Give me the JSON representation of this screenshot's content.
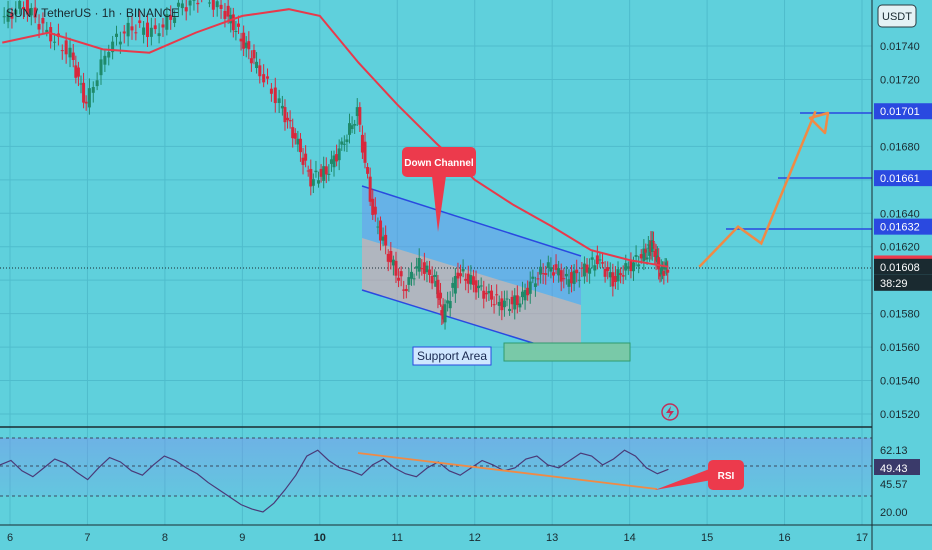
{
  "header": {
    "symbol_line": "SUN / TetherUS · 1h · BINANCE",
    "currency": "USDT"
  },
  "chart_data": {
    "type": "candlestick",
    "title": "SUN / TetherUS · 1h · BINANCE",
    "price_axis": {
      "unit": "USDT",
      "ticks": [
        "0.01740",
        "0.01720",
        "0.01700",
        "0.01680",
        "0.01660",
        "0.01640",
        "0.01620",
        "0.01600",
        "0.01580",
        "0.01560",
        "0.01540",
        "0.01520"
      ]
    },
    "x_axis": {
      "ticks": [
        "6",
        "7",
        "8",
        "9",
        "10",
        "11",
        "12",
        "13",
        "14",
        "15",
        "16",
        "17"
      ]
    },
    "price_tags": [
      {
        "label": "0.01701",
        "kind": "target"
      },
      {
        "label": "0.01661",
        "kind": "target"
      },
      {
        "label": "0.01632",
        "kind": "target"
      },
      {
        "label": "0.01610",
        "kind": "ma"
      },
      {
        "label": "0.01608",
        "kind": "last"
      },
      {
        "label": "38:29",
        "kind": "countdown"
      }
    ],
    "price_series": [
      {
        "day": 5.9,
        "price": 0.01755
      },
      {
        "day": 6.2,
        "price": 0.01765
      },
      {
        "day": 6.5,
        "price": 0.01748
      },
      {
        "day": 6.8,
        "price": 0.01735
      },
      {
        "day": 7.0,
        "price": 0.01705
      },
      {
        "day": 7.3,
        "price": 0.0174
      },
      {
        "day": 7.6,
        "price": 0.01752
      },
      {
        "day": 7.9,
        "price": 0.01748
      },
      {
        "day": 8.2,
        "price": 0.01762
      },
      {
        "day": 8.5,
        "price": 0.0177
      },
      {
        "day": 8.8,
        "price": 0.0176
      },
      {
        "day": 9.0,
        "price": 0.01745
      },
      {
        "day": 9.2,
        "price": 0.01728
      },
      {
        "day": 9.5,
        "price": 0.01705
      },
      {
        "day": 9.7,
        "price": 0.01685
      },
      {
        "day": 9.9,
        "price": 0.0166
      },
      {
        "day": 10.1,
        "price": 0.01665
      },
      {
        "day": 10.3,
        "price": 0.0168
      },
      {
        "day": 10.5,
        "price": 0.017
      },
      {
        "day": 10.7,
        "price": 0.0164
      },
      {
        "day": 10.9,
        "price": 0.01615
      },
      {
        "day": 11.1,
        "price": 0.01595
      },
      {
        "day": 11.3,
        "price": 0.0161
      },
      {
        "day": 11.5,
        "price": 0.016
      },
      {
        "day": 11.6,
        "price": 0.01578
      },
      {
        "day": 11.8,
        "price": 0.01605
      },
      {
        "day": 12.0,
        "price": 0.01598
      },
      {
        "day": 12.2,
        "price": 0.0159
      },
      {
        "day": 12.4,
        "price": 0.01585
      },
      {
        "day": 12.6,
        "price": 0.01588
      },
      {
        "day": 12.8,
        "price": 0.01602
      },
      {
        "day": 13.0,
        "price": 0.01608
      },
      {
        "day": 13.2,
        "price": 0.016
      },
      {
        "day": 13.4,
        "price": 0.01605
      },
      {
        "day": 13.6,
        "price": 0.01612
      },
      {
        "day": 13.8,
        "price": 0.016
      },
      {
        "day": 14.0,
        "price": 0.01608
      },
      {
        "day": 14.2,
        "price": 0.01615
      },
      {
        "day": 14.3,
        "price": 0.01622
      },
      {
        "day": 14.4,
        "price": 0.01605
      },
      {
        "day": 14.5,
        "price": 0.01608
      }
    ],
    "ma_series": [
      {
        "day": 5.9,
        "price": 0.01742
      },
      {
        "day": 6.5,
        "price": 0.01748
      },
      {
        "day": 7.2,
        "price": 0.01738
      },
      {
        "day": 7.8,
        "price": 0.01736
      },
      {
        "day": 8.4,
        "price": 0.01748
      },
      {
        "day": 9.0,
        "price": 0.01758
      },
      {
        "day": 9.6,
        "price": 0.01762
      },
      {
        "day": 10.0,
        "price": 0.01758
      },
      {
        "day": 10.5,
        "price": 0.0173
      },
      {
        "day": 11.0,
        "price": 0.01705
      },
      {
        "day": 11.5,
        "price": 0.01682
      },
      {
        "day": 12.0,
        "price": 0.0166
      },
      {
        "day": 12.5,
        "price": 0.01645
      },
      {
        "day": 13.0,
        "price": 0.01632
      },
      {
        "day": 13.5,
        "price": 0.01618
      },
      {
        "day": 14.0,
        "price": 0.01612
      },
      {
        "day": 14.5,
        "price": 0.01608
      }
    ],
    "annotations": {
      "down_channel_label": "Down Channel",
      "support_label": "Support Area",
      "rsi_label": "RSI"
    },
    "projection": [
      {
        "day": 14.9,
        "price": 0.01608
      },
      {
        "day": 15.4,
        "price": 0.01632
      },
      {
        "day": 15.7,
        "price": 0.01622
      },
      {
        "day": 16.4,
        "price": 0.01701
      }
    ],
    "rsi": {
      "ticks": [
        "62.13",
        "49.43",
        "45.57",
        "20.00"
      ],
      "values": [
        52,
        55,
        48,
        44,
        50,
        56,
        53,
        47,
        42,
        50,
        57,
        54,
        48,
        45,
        52,
        58,
        55,
        50,
        46,
        40,
        35,
        30,
        25,
        22,
        20,
        26,
        35,
        45,
        58,
        62,
        55,
        50,
        48,
        45,
        52,
        56,
        50,
        46,
        44,
        50,
        54,
        48,
        45,
        50,
        55,
        52,
        48,
        50,
        56,
        58,
        52,
        50,
        55,
        60,
        58,
        52,
        56,
        62,
        58,
        50,
        46,
        49
      ]
    },
    "grid": true
  }
}
